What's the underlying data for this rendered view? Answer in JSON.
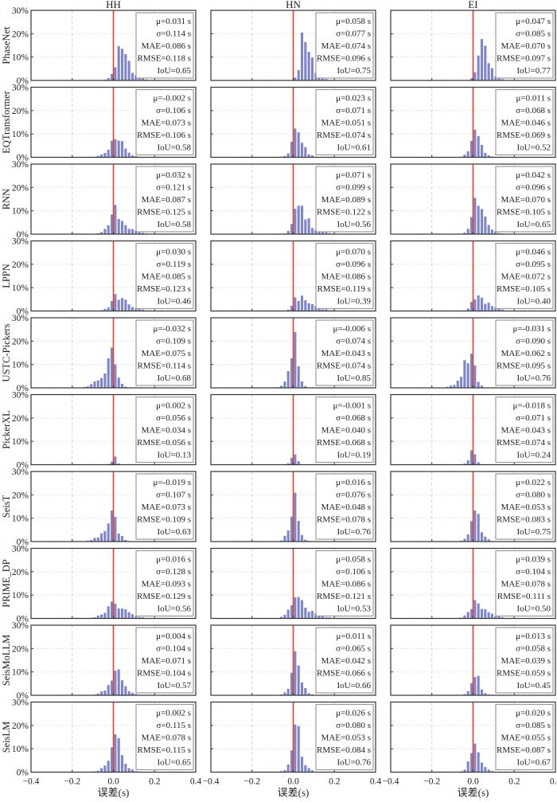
{
  "chart_data": {
    "type": "histogram-grid",
    "columns": [
      "HH",
      "HN",
      "EI"
    ],
    "rows": [
      "PhaseNet",
      "EQTransformer",
      "RNN",
      "LPPN",
      "USTC-Pickers",
      "PickerXL",
      "SeisT",
      "PRIME_DP",
      "SeisMoLLM",
      "SeisLM"
    ],
    "xlabel": "误差(s)",
    "xlim": [
      -0.4,
      0.4
    ],
    "xticks": [
      -0.4,
      -0.2,
      0.0,
      0.2,
      0.4
    ],
    "xtick_labels": [
      "−0.4",
      "−0.2",
      "0.0",
      "0.2",
      "0.4"
    ],
    "ylim": [
      0,
      0.3
    ],
    "yticks": [
      0,
      0.1,
      0.2,
      0.3
    ],
    "ytick_labels": [
      "0%",
      "10%",
      "20%",
      "30%"
    ],
    "grid": true,
    "reference_line": {
      "x": 0.0,
      "color": "#e8402a"
    },
    "bar_color": "#7f86c8",
    "stat_labels": {
      "mu": "μ=",
      "sigma": "σ=",
      "mae": "MAE=",
      "rmse": "RMSE=",
      "iou": "IoU=",
      "unit": " s"
    },
    "bin_width": 0.0167,
    "panels": [
      [
        {
          "mu": "0.031",
          "sigma": "0.114",
          "mae": "0.086",
          "rmse": "0.118",
          "iou": "0.65",
          "peak": 0.14,
          "center": 0.035,
          "spread": 0.04,
          "skew": 1.3
        },
        {
          "mu": "0.058",
          "sigma": "0.077",
          "mae": "0.074",
          "rmse": "0.096",
          "iou": "0.75",
          "peak": 0.22,
          "center": 0.05,
          "spread": 0.028,
          "skew": 1.5
        },
        {
          "mu": "0.047",
          "sigma": "0.085",
          "mae": "0.070",
          "rmse": "0.097",
          "iou": "0.77",
          "peak": 0.18,
          "center": 0.04,
          "spread": 0.03,
          "skew": 1.4
        }
      ],
      [
        {
          "mu": "-0.002",
          "sigma": "0.106",
          "mae": "0.073",
          "rmse": "0.106",
          "iou": "0.58",
          "peak": 0.105,
          "center": 0.012,
          "spread": 0.042,
          "skew": 1.0
        },
        {
          "mu": "0.023",
          "sigma": "0.071",
          "mae": "0.051",
          "rmse": "0.074",
          "iou": "0.61",
          "peak": 0.145,
          "center": 0.02,
          "spread": 0.03,
          "skew": 1.1
        },
        {
          "mu": "0.011",
          "sigma": "0.068",
          "mae": "0.046",
          "rmse": "0.069",
          "iou": "0.52",
          "peak": 0.115,
          "center": 0.015,
          "spread": 0.03,
          "skew": 1.0
        }
      ],
      [
        {
          "mu": "0.032",
          "sigma": "0.121",
          "mae": "0.087",
          "rmse": "0.125",
          "iou": "0.58",
          "peak": 0.105,
          "center": 0.01,
          "spread": 0.045,
          "skew": 1.3
        },
        {
          "mu": "0.071",
          "sigma": "0.099",
          "mae": "0.089",
          "rmse": "0.122",
          "iou": "0.56",
          "peak": 0.12,
          "center": 0.02,
          "spread": 0.04,
          "skew": 1.6
        },
        {
          "mu": "0.042",
          "sigma": "0.096",
          "mae": "0.070",
          "rmse": "0.105",
          "iou": "0.65",
          "peak": 0.14,
          "center": 0.015,
          "spread": 0.035,
          "skew": 1.4
        }
      ],
      [
        {
          "mu": "0.030",
          "sigma": "0.119",
          "mae": "0.085",
          "rmse": "0.123",
          "iou": "0.46",
          "peak": 0.075,
          "center": 0.012,
          "spread": 0.045,
          "skew": 1.5
        },
        {
          "mu": "0.070",
          "sigma": "0.096",
          "mae": "0.086",
          "rmse": "0.119",
          "iou": "0.39",
          "peak": 0.062,
          "center": 0.02,
          "spread": 0.045,
          "skew": 1.7
        },
        {
          "mu": "0.046",
          "sigma": "0.095",
          "mae": "0.072",
          "rmse": "0.105",
          "iou": "0.40",
          "peak": 0.072,
          "center": 0.015,
          "spread": 0.04,
          "skew": 1.6
        }
      ],
      [
        {
          "mu": "-0.032",
          "sigma": "0.109",
          "mae": "0.075",
          "rmse": "0.114",
          "iou": "0.68",
          "peak": 0.135,
          "center": -0.008,
          "spread": 0.04,
          "skew": 0.7
        },
        {
          "mu": "-0.006",
          "sigma": "0.074",
          "mae": "0.043",
          "rmse": "0.074",
          "iou": "0.85",
          "peak": 0.225,
          "center": 0.003,
          "spread": 0.025,
          "skew": 0.9
        },
        {
          "mu": "-0.031",
          "sigma": "0.090",
          "mae": "0.062",
          "rmse": "0.095",
          "iou": "0.76",
          "peak": 0.175,
          "center": -0.008,
          "spread": 0.032,
          "skew": 0.7
        }
      ],
      [
        {
          "mu": "0.002",
          "sigma": "0.056",
          "mae": "0.034",
          "rmse": "0.056",
          "iou": "0.13",
          "peak": 0.034,
          "center": 0.005,
          "spread": 0.015,
          "skew": 1.0
        },
        {
          "mu": "-0.001",
          "sigma": "0.068",
          "mae": "0.040",
          "rmse": "0.068",
          "iou": "0.19",
          "peak": 0.055,
          "center": 0.005,
          "spread": 0.016,
          "skew": 1.0
        },
        {
          "mu": "-0.018",
          "sigma": "0.071",
          "mae": "0.043",
          "rmse": "0.074",
          "iou": "0.24",
          "peak": 0.065,
          "center": 0.0,
          "spread": 0.02,
          "skew": 0.9
        }
      ],
      [
        {
          "mu": "-0.019",
          "sigma": "0.107",
          "mae": "0.073",
          "rmse": "0.109",
          "iou": "0.63",
          "peak": 0.125,
          "center": -0.005,
          "spread": 0.038,
          "skew": 0.8
        },
        {
          "mu": "0.016",
          "sigma": "0.076",
          "mae": "0.048",
          "rmse": "0.078",
          "iou": "0.76",
          "peak": 0.19,
          "center": 0.005,
          "spread": 0.026,
          "skew": 1.0
        },
        {
          "mu": "0.022",
          "sigma": "0.080",
          "mae": "0.053",
          "rmse": "0.083",
          "iou": "0.75",
          "peak": 0.165,
          "center": 0.008,
          "spread": 0.028,
          "skew": 1.1
        }
      ],
      [
        {
          "mu": "0.016",
          "sigma": "0.128",
          "mae": "0.093",
          "rmse": "0.129",
          "iou": "0.56",
          "peak": 0.077,
          "center": 0.0,
          "spread": 0.055,
          "skew": 1.2
        },
        {
          "mu": "0.058",
          "sigma": "0.106",
          "mae": "0.086",
          "rmse": "0.121",
          "iou": "0.53",
          "peak": 0.085,
          "center": 0.01,
          "spread": 0.05,
          "skew": 1.5
        },
        {
          "mu": "0.039",
          "sigma": "0.104",
          "mae": "0.078",
          "rmse": "0.111",
          "iou": "0.50",
          "peak": 0.075,
          "center": 0.008,
          "spread": 0.045,
          "skew": 1.4
        }
      ],
      [
        {
          "mu": "0.004",
          "sigma": "0.104",
          "mae": "0.071",
          "rmse": "0.104",
          "iou": "0.57",
          "peak": 0.11,
          "center": 0.012,
          "spread": 0.042,
          "skew": 1.0
        },
        {
          "mu": "0.011",
          "sigma": "0.065",
          "mae": "0.042",
          "rmse": "0.066",
          "iou": "0.66",
          "peak": 0.17,
          "center": 0.015,
          "spread": 0.028,
          "skew": 1.0
        },
        {
          "mu": "0.013",
          "sigma": "0.058",
          "mae": "0.039",
          "rmse": "0.059",
          "iou": "0.45",
          "peak": 0.105,
          "center": 0.012,
          "spread": 0.025,
          "skew": 1.0
        }
      ],
      [
        {
          "mu": "0.002",
          "sigma": "0.115",
          "mae": "0.078",
          "rmse": "0.115",
          "iou": "0.65",
          "peak": 0.14,
          "center": 0.012,
          "spread": 0.042,
          "skew": 1.0
        },
        {
          "mu": "0.026",
          "sigma": "0.080",
          "mae": "0.053",
          "rmse": "0.084",
          "iou": "0.76",
          "peak": 0.19,
          "center": 0.015,
          "spread": 0.03,
          "skew": 1.1
        },
        {
          "mu": "0.020",
          "sigma": "0.085",
          "mae": "0.055",
          "rmse": "0.087",
          "iou": "0.67",
          "peak": 0.15,
          "center": 0.01,
          "spread": 0.03,
          "skew": 1.1
        }
      ]
    ]
  }
}
